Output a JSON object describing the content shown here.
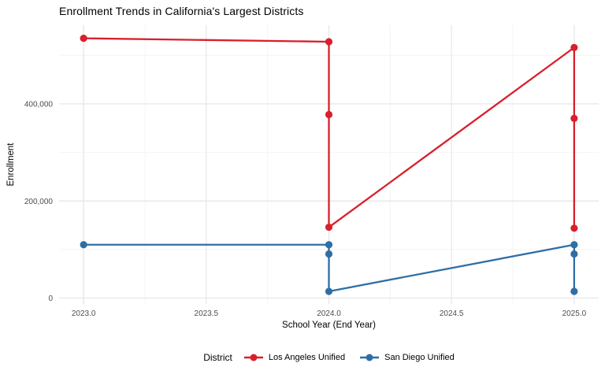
{
  "chart_data": {
    "type": "line",
    "title": "Enrollment Trends in California's Largest Districts",
    "xlabel": "School Year (End Year)",
    "ylabel": "Enrollment",
    "legend": {
      "title": "District",
      "position": "bottom",
      "entries": [
        "Los Angeles Unified",
        "San Diego Unified"
      ]
    },
    "grid": true,
    "xlim": [
      2022.9,
      2025.1
    ],
    "ylim": [
      -12000,
      562000
    ],
    "x_ticks": {
      "values": [
        2023.0,
        2023.5,
        2024.0,
        2024.5,
        2025.0
      ],
      "labels": [
        "2023.0",
        "2023.5",
        "2024.0",
        "2024.5",
        "2025.0"
      ]
    },
    "y_ticks": {
      "values": [
        0,
        200000,
        400000
      ],
      "labels": [
        "0",
        "200,000",
        "400,000"
      ]
    },
    "x_minor_ticks": [
      2023.25,
      2023.75,
      2024.25,
      2024.75
    ],
    "y_minor_ticks": [
      100000,
      300000,
      500000
    ],
    "series": [
      {
        "name": "Los Angeles Unified",
        "color": "#D7202C",
        "points": [
          [
            2023,
            535000
          ],
          [
            2024,
            528000
          ],
          [
            2024,
            378000
          ],
          [
            2024,
            146000
          ],
          [
            2025,
            516000
          ],
          [
            2025,
            370000
          ],
          [
            2025,
            144000
          ]
        ]
      },
      {
        "name": "San Diego Unified",
        "color": "#2F6EA5",
        "points": [
          [
            2023,
            110000
          ],
          [
            2024,
            110000
          ],
          [
            2024,
            91000
          ],
          [
            2024,
            14000
          ],
          [
            2025,
            110000
          ],
          [
            2025,
            91000
          ],
          [
            2025,
            14000
          ]
        ]
      }
    ]
  }
}
